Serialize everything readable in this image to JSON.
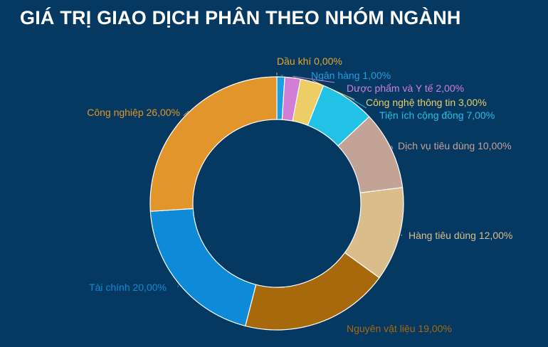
{
  "title": "GIÁ TRỊ GIAO DỊCH PHÂN THEO NHÓM NGÀNH",
  "chart_data": {
    "type": "pie",
    "donut": true,
    "title": "GIÁ TRỊ GIAO DỊCH PHÂN THEO NHÓM NGÀNH",
    "unit": "%",
    "slices": [
      {
        "label": "Dầu khí",
        "value": 0.0,
        "display": "Dầu khí 0,00%",
        "color": "#e6a729"
      },
      {
        "label": "Ngân hàng",
        "value": 1.0,
        "display": "Ngân hàng 1,00%",
        "color": "#1c9fe0"
      },
      {
        "label": "Dược phẩm và Y tế",
        "value": 2.0,
        "display": "Dược phẩm và Y tế 2,00%",
        "color": "#d27ed6"
      },
      {
        "label": "Công nghệ thông tin",
        "value": 3.0,
        "display": "Công nghệ thông tin 3,00%",
        "color": "#eccd66"
      },
      {
        "label": "Tiện ích cộng đồng",
        "value": 7.0,
        "display": "Tiện ích cộng đồng 7,00%",
        "color": "#21c2e6"
      },
      {
        "label": "Dịch vụ tiêu dùng",
        "value": 10.0,
        "display": "Dịch vụ tiêu dùng 10,00%",
        "color": "#c4a397"
      },
      {
        "label": "Hàng tiêu dùng",
        "value": 12.0,
        "display": "Hàng tiêu dùng 12,00%",
        "color": "#dbbd8c"
      },
      {
        "label": "Nguyên vật liệu",
        "value": 19.0,
        "display": "Nguyên vật liệu 19,00%",
        "color": "#a8690c"
      },
      {
        "label": "Tài chính",
        "value": 20.0,
        "display": "Tài chính 20,00%",
        "color": "#0d8ad8"
      },
      {
        "label": "Công nghiệp",
        "value": 26.0,
        "display": "Công nghiệp 26,00%",
        "color": "#e1952a"
      }
    ]
  }
}
